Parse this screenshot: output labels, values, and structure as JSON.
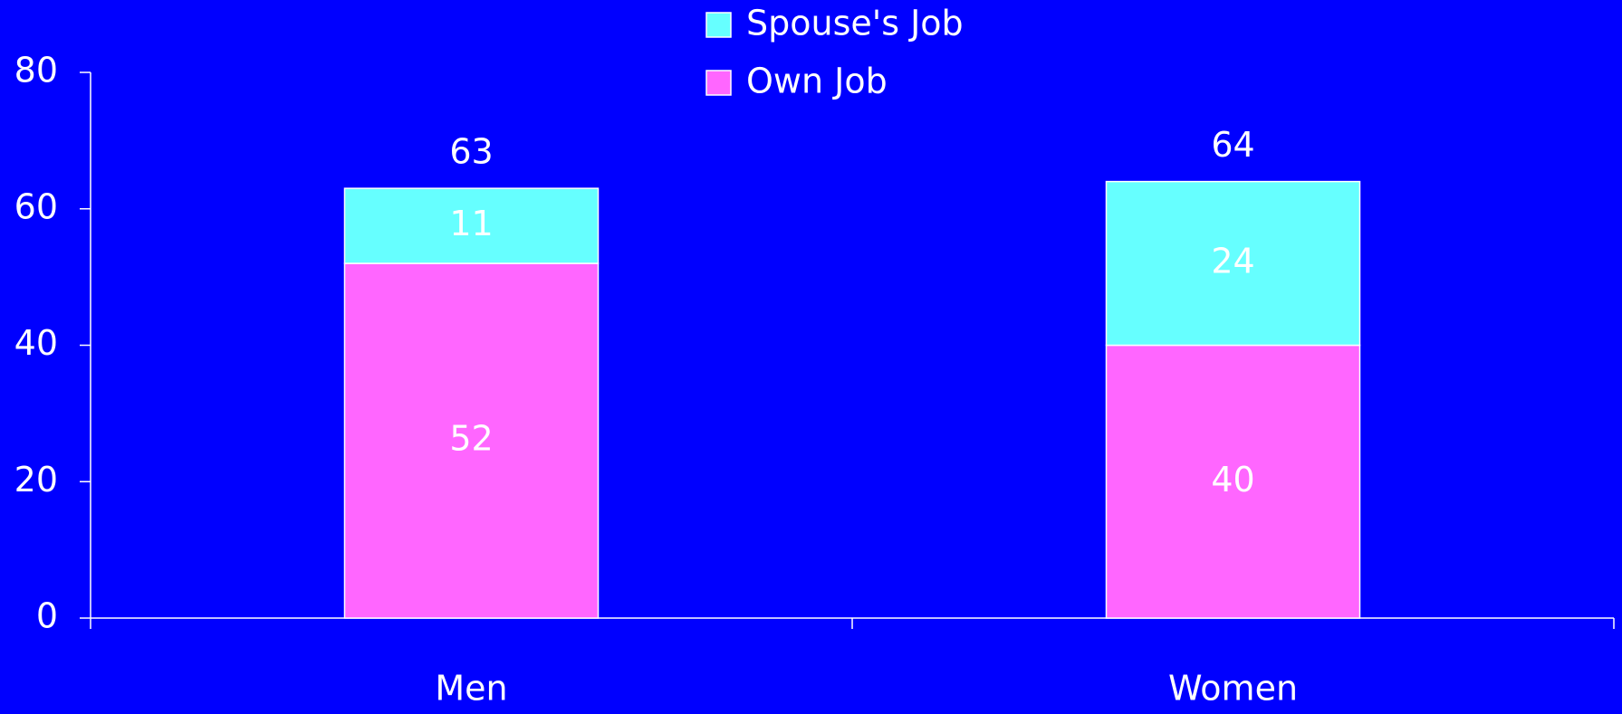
{
  "chart_data": {
    "type": "stacked_bar",
    "categories": [
      "Men",
      "Women"
    ],
    "series": [
      {
        "name": "Own Job",
        "color": "#ff66ff",
        "values": [
          52,
          40
        ]
      },
      {
        "name": "Spouse's Job",
        "color": "#66ffff",
        "values": [
          11,
          24
        ]
      }
    ],
    "totals": [
      63,
      64
    ],
    "ylim": [
      0,
      80
    ],
    "yticks": [
      0,
      20,
      40,
      60,
      80
    ],
    "grid": false
  }
}
